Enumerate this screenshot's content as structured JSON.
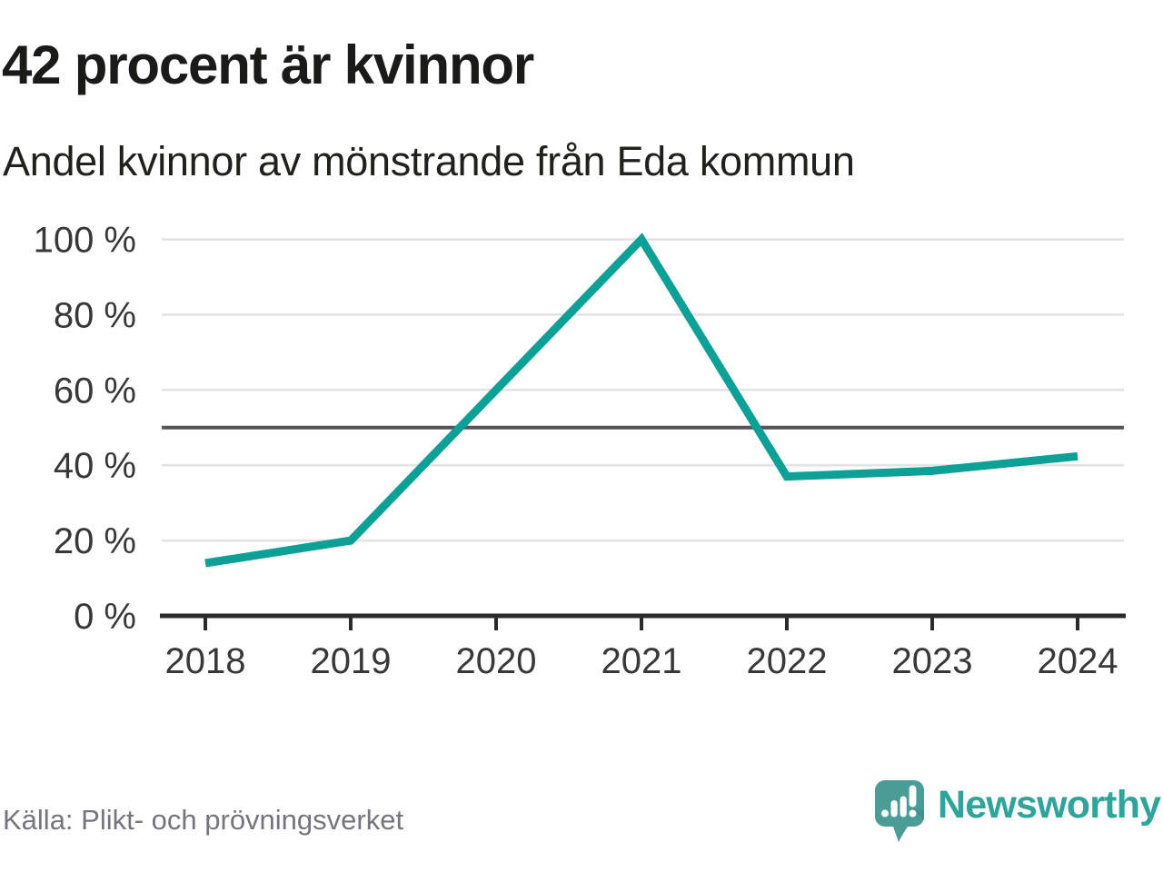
{
  "page": {
    "title": "42 procent är kvinnor",
    "subtitle": "Andel kvinnor av mönstrande från Eda kommun",
    "source": "Källa: Plikt- och prövningsverket"
  },
  "logo": {
    "brand": "Newsworthy",
    "icon": "newsworthy-speech-bubble-bar-chart-icon"
  },
  "colors": {
    "accent": "#0da096",
    "grid": "#e2e2e2",
    "reference_line": "#54545c",
    "axis": "#2b2b2b",
    "tick_label": "#383838",
    "title": "#1a1a18",
    "source_text": "#75757d",
    "logo_bubble": "#4b9b96",
    "logo_bubble_shadow": "#3e8c87",
    "logo_text": "#2ea49b"
  },
  "chart_data": {
    "type": "line",
    "title": "42 procent är kvinnor",
    "subtitle": "Andel kvinnor av mönstrande från Eda kommun",
    "x": [
      "2018",
      "2019",
      "2020",
      "2021",
      "2022",
      "2023",
      "2024"
    ],
    "series": [
      {
        "name": "Andel kvinnor av mönstrande",
        "values": [
          14,
          20,
          60,
          100,
          37,
          38.5,
          42.4
        ]
      }
    ],
    "unit": "%",
    "y_ticks": [
      0,
      20,
      40,
      60,
      80,
      100
    ],
    "y_tick_suffix": " %",
    "ylim": [
      0,
      100
    ],
    "grid": true,
    "reference_line": 50,
    "legend_position": "none",
    "source": "Källa: Plikt- och prövningsverket"
  }
}
